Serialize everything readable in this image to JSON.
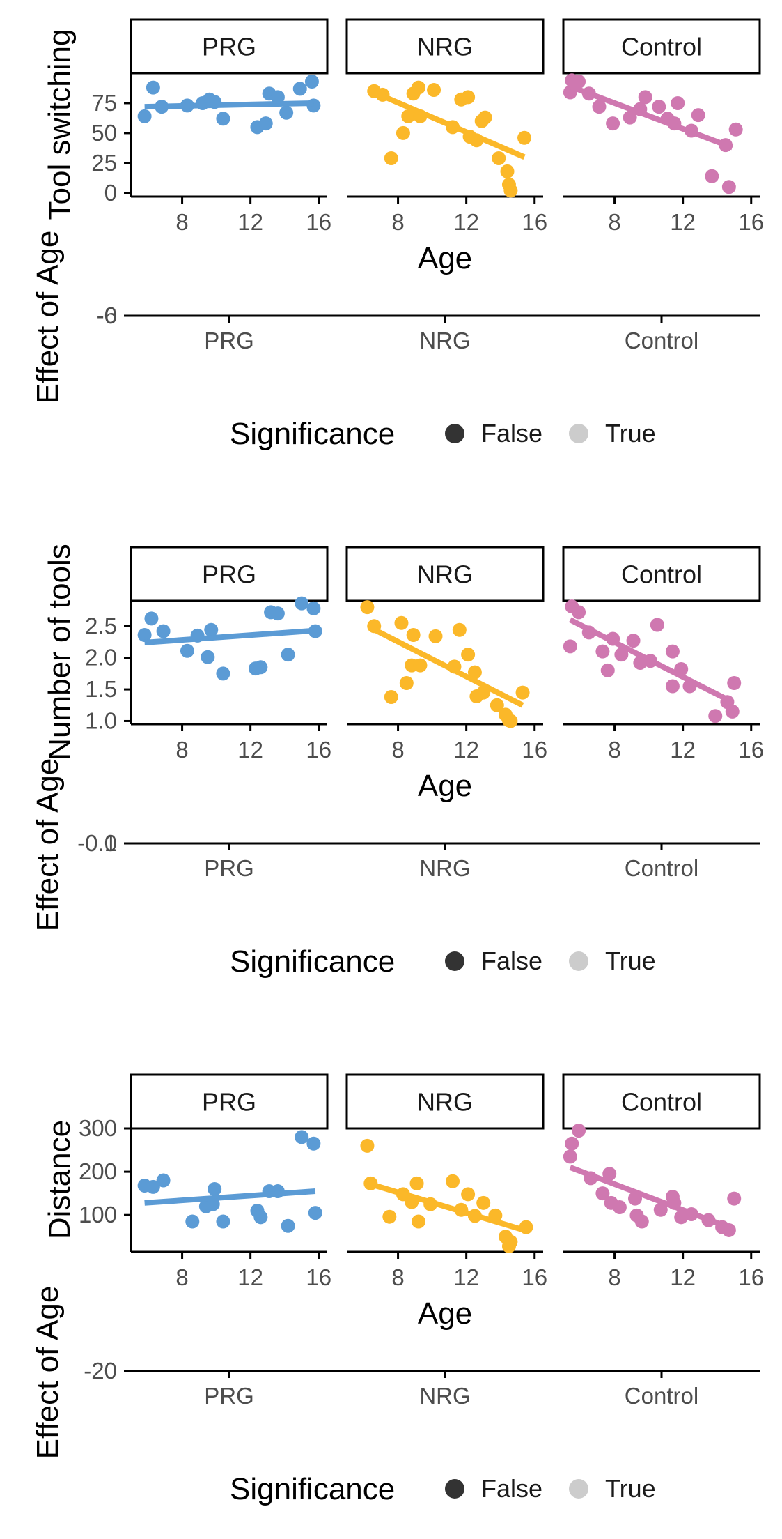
{
  "colors": {
    "PRG": "#5b9bd5",
    "NRG": "#fbb829",
    "Control": "#cf78b0",
    "legend_false": "#333333",
    "legend_true": "#cccccc",
    "axis": "#000000",
    "tick_label": "#4d4d4d"
  },
  "chart_data": [
    {
      "type": "scatter",
      "facets": [
        "PRG",
        "NRG",
        "Control"
      ],
      "ylabel": "Tool switching",
      "xlabel": "Age",
      "xlim": [
        5,
        16.5
      ],
      "ylim": [
        -3,
        100
      ],
      "xticks": [
        "8",
        "12",
        "16"
      ],
      "yticks": [
        "0",
        "25",
        "50",
        "75"
      ],
      "series": [
        {
          "name": "PRG",
          "points": [
            [
              5.8,
              64
            ],
            [
              6.3,
              88
            ],
            [
              6.8,
              72
            ],
            [
              8.3,
              73
            ],
            [
              9.2,
              75
            ],
            [
              9.6,
              78
            ],
            [
              9.9,
              76
            ],
            [
              10.4,
              62
            ],
            [
              12.4,
              55
            ],
            [
              12.9,
              58
            ],
            [
              13.1,
              83
            ],
            [
              13.6,
              80
            ],
            [
              14.1,
              67
            ],
            [
              14.9,
              87
            ],
            [
              15.6,
              93
            ],
            [
              15.7,
              73
            ]
          ],
          "fit": [
            [
              5.8,
              72
            ],
            [
              15.7,
              75
            ]
          ]
        },
        {
          "name": "NRG",
          "points": [
            [
              6.6,
              85
            ],
            [
              7.1,
              82
            ],
            [
              7.6,
              29
            ],
            [
              8.3,
              50
            ],
            [
              8.6,
              64
            ],
            [
              8.9,
              83
            ],
            [
              9.2,
              88
            ],
            [
              9.3,
              64
            ],
            [
              10.1,
              86
            ],
            [
              11.2,
              55
            ],
            [
              11.7,
              78
            ],
            [
              12.1,
              80
            ],
            [
              12.2,
              47
            ],
            [
              12.6,
              44
            ],
            [
              12.9,
              60
            ],
            [
              13.1,
              63
            ],
            [
              13.9,
              29
            ],
            [
              14.4,
              18
            ],
            [
              14.5,
              7
            ],
            [
              14.6,
              2
            ],
            [
              15.4,
              46
            ]
          ],
          "fit": [
            [
              6.6,
              84
            ],
            [
              15.4,
              30
            ]
          ]
        },
        {
          "name": "Control",
          "points": [
            [
              5.4,
              84
            ],
            [
              5.5,
              94
            ],
            [
              5.9,
              93
            ],
            [
              6.5,
              83
            ],
            [
              7.1,
              72
            ],
            [
              7.9,
              58
            ],
            [
              8.9,
              63
            ],
            [
              9.5,
              70
            ],
            [
              9.8,
              80
            ],
            [
              10.6,
              72
            ],
            [
              11.1,
              62
            ],
            [
              11.5,
              58
            ],
            [
              11.7,
              75
            ],
            [
              12.5,
              52
            ],
            [
              12.9,
              65
            ],
            [
              13.7,
              14
            ],
            [
              14.5,
              40
            ],
            [
              14.7,
              5
            ],
            [
              15.1,
              53
            ]
          ],
          "fit": [
            [
              5.4,
              89
            ],
            [
              14.9,
              38
            ]
          ]
        }
      ],
      "effect_panel": {
        "ylabel": "Effect of Age",
        "yticks": [
          "-6",
          "0"
        ],
        "categories": [
          "PRG",
          "NRG",
          "Control"
        ]
      },
      "legend": {
        "title": "Significance",
        "entries": [
          "False",
          "True"
        ],
        "placement": "bottom"
      }
    },
    {
      "type": "scatter",
      "facets": [
        "PRG",
        "NRG",
        "Control"
      ],
      "ylabel": "Number of tools",
      "xlabel": "Age",
      "xlim": [
        5,
        16.5
      ],
      "ylim": [
        0.95,
        2.9
      ],
      "xticks": [
        "8",
        "12",
        "16"
      ],
      "yticks": [
        "1.0",
        "1.5",
        "2.0",
        "2.5"
      ],
      "series": [
        {
          "name": "PRG",
          "points": [
            [
              5.8,
              2.36
            ],
            [
              6.2,
              2.62
            ],
            [
              6.9,
              2.42
            ],
            [
              8.3,
              2.11
            ],
            [
              8.9,
              2.35
            ],
            [
              9.5,
              2.01
            ],
            [
              9.7,
              2.44
            ],
            [
              10.4,
              1.75
            ],
            [
              12.3,
              1.83
            ],
            [
              12.6,
              1.85
            ],
            [
              13.2,
              2.72
            ],
            [
              13.6,
              2.7
            ],
            [
              14.2,
              2.05
            ],
            [
              15.0,
              2.86
            ],
            [
              15.7,
              2.78
            ],
            [
              15.8,
              2.42
            ]
          ],
          "fit": [
            [
              5.8,
              2.24
            ],
            [
              15.8,
              2.43
            ]
          ]
        },
        {
          "name": "NRG",
          "points": [
            [
              6.2,
              2.8
            ],
            [
              6.6,
              2.5
            ],
            [
              7.6,
              1.38
            ],
            [
              8.2,
              2.55
            ],
            [
              8.5,
              1.6
            ],
            [
              8.8,
              1.88
            ],
            [
              8.9,
              2.36
            ],
            [
              9.3,
              1.88
            ],
            [
              10.2,
              2.34
            ],
            [
              11.3,
              1.86
            ],
            [
              11.6,
              2.44
            ],
            [
              12.1,
              2.05
            ],
            [
              12.5,
              1.77
            ],
            [
              12.6,
              1.39
            ],
            [
              13.0,
              1.45
            ],
            [
              13.8,
              1.25
            ],
            [
              14.3,
              1.1
            ],
            [
              14.5,
              1.01
            ],
            [
              14.6,
              1.0
            ],
            [
              15.3,
              1.45
            ]
          ],
          "fit": [
            [
              6.5,
              2.46
            ],
            [
              15.3,
              1.25
            ]
          ]
        },
        {
          "name": "Control",
          "points": [
            [
              5.5,
              2.81
            ],
            [
              5.9,
              2.72
            ],
            [
              5.4,
              2.18
            ],
            [
              6.5,
              2.4
            ],
            [
              7.3,
              2.1
            ],
            [
              7.6,
              1.8
            ],
            [
              7.9,
              2.3
            ],
            [
              8.4,
              2.05
            ],
            [
              9.1,
              2.27
            ],
            [
              9.5,
              1.92
            ],
            [
              10.1,
              1.95
            ],
            [
              10.5,
              2.52
            ],
            [
              11.4,
              2.1
            ],
            [
              11.4,
              1.55
            ],
            [
              11.9,
              1.82
            ],
            [
              12.4,
              1.55
            ],
            [
              13.9,
              1.08
            ],
            [
              14.6,
              1.3
            ],
            [
              14.9,
              1.15
            ],
            [
              15.0,
              1.6
            ]
          ],
          "fit": [
            [
              5.4,
              2.6
            ],
            [
              14.9,
              1.3
            ]
          ]
        }
      ],
      "effect_panel": {
        "ylabel": "Effect of Age",
        "yticks": [
          "-0.1",
          "0.0"
        ],
        "categories": [
          "PRG",
          "NRG",
          "Control"
        ]
      },
      "legend": {
        "title": "Significance",
        "entries": [
          "False",
          "True"
        ],
        "placement": "bottom"
      }
    },
    {
      "type": "scatter",
      "facets": [
        "PRG",
        "NRG",
        "Control"
      ],
      "ylabel": "Distance",
      "xlabel": "Age",
      "xlim": [
        5,
        16.5
      ],
      "ylim": [
        15,
        300
      ],
      "xticks": [
        "8",
        "12",
        "16"
      ],
      "yticks": [
        "100",
        "200",
        "300"
      ],
      "series": [
        {
          "name": "PRG",
          "points": [
            [
              5.8,
              168
            ],
            [
              6.3,
              165
            ],
            [
              6.9,
              180
            ],
            [
              8.6,
              85
            ],
            [
              9.4,
              120
            ],
            [
              9.8,
              125
            ],
            [
              9.9,
              160
            ],
            [
              10.4,
              85
            ],
            [
              12.4,
              110
            ],
            [
              12.6,
              95
            ],
            [
              13.1,
              155
            ],
            [
              13.6,
              155
            ],
            [
              14.2,
              75
            ],
            [
              15.0,
              280
            ],
            [
              15.7,
              265
            ],
            [
              15.8,
              105
            ]
          ],
          "fit": [
            [
              5.8,
              128
            ],
            [
              15.8,
              155
            ]
          ]
        },
        {
          "name": "NRG",
          "points": [
            [
              6.2,
              260
            ],
            [
              6.4,
              173
            ],
            [
              7.5,
              96
            ],
            [
              8.3,
              148
            ],
            [
              8.8,
              130
            ],
            [
              9.1,
              173
            ],
            [
              9.2,
              85
            ],
            [
              9.9,
              125
            ],
            [
              11.2,
              178
            ],
            [
              11.7,
              112
            ],
            [
              12.1,
              148
            ],
            [
              12.5,
              98
            ],
            [
              13.0,
              128
            ],
            [
              13.7,
              99
            ],
            [
              14.3,
              50
            ],
            [
              14.5,
              28
            ],
            [
              14.6,
              38
            ],
            [
              15.5,
              72
            ]
          ],
          "fit": [
            [
              6.5,
              170
            ],
            [
              15.4,
              65
            ]
          ]
        },
        {
          "name": "Control",
          "points": [
            [
              5.4,
              235
            ],
            [
              5.5,
              265
            ],
            [
              5.9,
              295
            ],
            [
              6.6,
              185
            ],
            [
              7.3,
              150
            ],
            [
              7.7,
              195
            ],
            [
              7.8,
              128
            ],
            [
              8.3,
              118
            ],
            [
              9.2,
              138
            ],
            [
              9.3,
              99
            ],
            [
              9.6,
              85
            ],
            [
              10.7,
              112
            ],
            [
              11.4,
              142
            ],
            [
              11.5,
              128
            ],
            [
              11.9,
              95
            ],
            [
              12.5,
              102
            ],
            [
              13.5,
              88
            ],
            [
              14.3,
              72
            ],
            [
              14.7,
              65
            ],
            [
              15.0,
              138
            ]
          ],
          "fit": [
            [
              5.4,
              210
            ],
            [
              14.8,
              70
            ]
          ]
        }
      ],
      "effect_panel": {
        "ylabel": "Effect of Age",
        "yticks": [
          "-20",
          "0"
        ],
        "categories": [
          "PRG",
          "NRG",
          "Control"
        ]
      },
      "legend": {
        "title": "Significance",
        "entries": [
          "False",
          "True"
        ],
        "placement": "bottom"
      }
    }
  ]
}
